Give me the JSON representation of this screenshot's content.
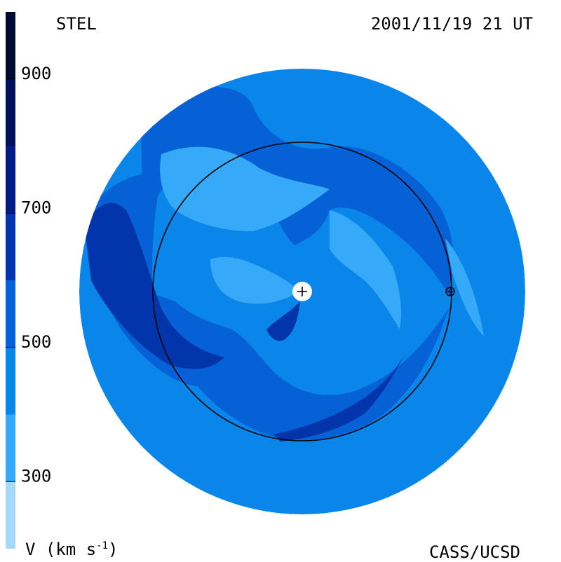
{
  "chart_data": {
    "type": "heatmap",
    "title": "",
    "source_label": "STEL",
    "date_label": "2001/11/19 21 UT",
    "credit_label": "CASS/UCSD",
    "colorbar": {
      "unit_label_prefix": "V (km s",
      "unit_label_exp": "-1",
      "unit_label_suffix": ")",
      "range": [
        200,
        1000
      ],
      "ticks": [
        {
          "value": 300,
          "label": "300"
        },
        {
          "value": 500,
          "label": "500"
        },
        {
          "value": 700,
          "label": "700"
        },
        {
          "value": 900,
          "label": "900"
        }
      ],
      "bands": [
        {
          "from": 200,
          "to": 300,
          "color": "#a6d8f7"
        },
        {
          "from": 300,
          "to": 400,
          "color": "#36aaf7"
        },
        {
          "from": 400,
          "to": 500,
          "color": "#0a86ea"
        },
        {
          "from": 500,
          "to": 600,
          "color": "#0660d6"
        },
        {
          "from": 600,
          "to": 700,
          "color": "#0335aa"
        },
        {
          "from": 700,
          "to": 800,
          "color": "#031c82"
        },
        {
          "from": 800,
          "to": 900,
          "color": "#02115a"
        },
        {
          "from": 900,
          "to": 1000,
          "color": "#010a30"
        }
      ]
    },
    "markers": [
      {
        "name": "sun",
        "symbol": "+"
      },
      {
        "name": "earth",
        "symbol": "⊕"
      }
    ],
    "reference_circle": "earth orbit"
  }
}
